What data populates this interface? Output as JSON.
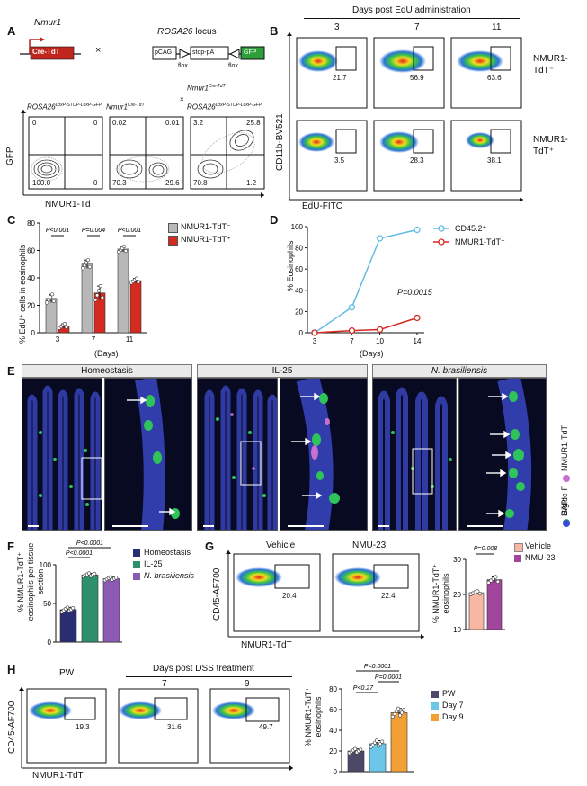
{
  "panelLabels": [
    "A",
    "B",
    "C",
    "D",
    "E",
    "F",
    "G",
    "H"
  ],
  "A": {
    "nmur1_label": "Nmur1",
    "cre_label": "Cre-TdT",
    "times": "×",
    "rosa_label": "ROSA26",
    "locus": " locus",
    "pcag": "pCAG",
    "stop": "stop-pA",
    "gfp": "GFP",
    "flox1": "flox",
    "flox2": "flox",
    "plots": [
      {
        "title": "ROSA26",
        "title_sup": "LoxP-STOP-LoxP-GFP",
        "q": [
          "0",
          "0",
          "100.0",
          "0"
        ]
      },
      {
        "title": "Nmur1",
        "title_sup": "Cre-TdT",
        "q": [
          "0.02",
          "0.01",
          "70.3",
          "29.6"
        ]
      },
      {
        "title": "Nmur1",
        "title_sup": "Cre-TdT",
        "title2": "×",
        "title3": "ROSA26",
        "title3_sup": "LoxP-STOP-LoxP-GFP",
        "q": [
          "3.2",
          "25.8",
          "70.8",
          "1.2"
        ]
      }
    ],
    "ylabel": "GFP",
    "xlabel": "NMUR1-TdT"
  },
  "B": {
    "header": "Days post EdU administration",
    "days": [
      "3",
      "7",
      "11"
    ],
    "row1_label": "NMUR1-",
    "row1_label2": "TdT⁻",
    "row2_label": "NMUR1-",
    "row2_label2": "TdT⁺",
    "row1_values": [
      "21.7",
      "56.9",
      "63.6"
    ],
    "row2_values": [
      "3.5",
      "28.3",
      "38.1"
    ],
    "ylabel": "CD11b-BV521",
    "xlabel": "EdU-FITC"
  },
  "C": {
    "ylabel": "% EdU⁺ cells in eosinophils",
    "xlabel": "(Days)",
    "legend": [
      "NMUR1-TdT⁻",
      "NMUR1-TdT⁺"
    ],
    "pvalues": [
      "P<0.001",
      "P=0.004",
      "P<0.001"
    ],
    "colors": {
      "neg": "#b8b8b8",
      "pos": "#d42a20"
    },
    "chart_data": {
      "type": "bar",
      "categories": [
        "3",
        "7",
        "11"
      ],
      "series": [
        {
          "name": "NMUR1-TdT⁻",
          "values": [
            25,
            50,
            61
          ],
          "err": [
            3,
            3,
            2
          ]
        },
        {
          "name": "NMUR1-TdT⁺",
          "values": [
            5,
            29,
            38
          ],
          "err": [
            1.5,
            5,
            1.5
          ]
        }
      ],
      "ylim": [
        0,
        80
      ],
      "yticks": [
        "0",
        "20",
        "40",
        "60",
        "80"
      ]
    }
  },
  "D": {
    "ylabel": "% Eosinophils",
    "xlabel": "(Days)",
    "legend": [
      "CD45.2⁺",
      "NMUR1-TdT⁺"
    ],
    "pvalue": "P=0.0015",
    "colors": {
      "cd45": "#5fbde6",
      "nmur": "#d42a20"
    },
    "chart_data": {
      "type": "line",
      "x": [
        3,
        7,
        10,
        14
      ],
      "series": [
        {
          "name": "CD45.2⁺",
          "values": [
            0,
            24,
            89,
            97
          ]
        },
        {
          "name": "NMUR1-TdT⁺",
          "values": [
            0,
            2,
            3,
            14
          ]
        }
      ],
      "xticks": [
        "3",
        "7",
        "10",
        "14"
      ],
      "yticks": [
        "0",
        "20",
        "40",
        "60",
        "80",
        "100"
      ],
      "ylim": [
        0,
        100
      ]
    }
  },
  "E": {
    "titles": [
      "Homeostasis",
      "IL-25",
      "N. brasiliensis"
    ],
    "legend": [
      "NMUR1-TdT",
      "Siglec-F",
      "DAPI"
    ],
    "legend_colors": [
      "#c86fd0",
      "#2fc45a",
      "#3c48d8"
    ]
  },
  "F": {
    "ylabel": "% NMUR1-TdT⁺ eosinophils per tissue section",
    "legend": [
      "Homeostasis",
      "IL-25",
      "N. brasiliensis"
    ],
    "colors": [
      "#2b2d72",
      "#2f8f6a",
      "#8b5bb3"
    ],
    "pvalues": [
      "P<0.0001",
      "P<0.0001"
    ],
    "chart_data": {
      "type": "bar",
      "categories": [
        "Homeostasis",
        "IL-25",
        "N. brasiliensis"
      ],
      "values": [
        42,
        87,
        82
      ],
      "err": [
        3,
        2,
        2
      ],
      "ylim": [
        0,
        100
      ],
      "yticks": [
        "0",
        "50",
        "100"
      ]
    }
  },
  "G": {
    "titles": [
      "Vehicle",
      "NMU-23"
    ],
    "values": [
      "20.4",
      "22.4"
    ],
    "ylabel": "CD45-AF700",
    "xlabel": "NMUR1-TdT",
    "bar_ylabel": "% NMUR1-TdT⁺ eosinophils",
    "legend": [
      "Vehicle",
      "NMU-23"
    ],
    "colors": [
      "#f7b7a3",
      "#a2459c"
    ],
    "pvalue": "P=0.008",
    "chart_data": {
      "type": "bar",
      "categories": [
        "Vehicle",
        "NMU-23"
      ],
      "values": [
        20.5,
        24.2
      ],
      "err": [
        0.4,
        0.8
      ],
      "ylim": [
        10,
        30
      ],
      "yticks": [
        "10",
        "20",
        "30"
      ]
    }
  },
  "H": {
    "header": "Days post DSS treatment",
    "titles": [
      "PW",
      "7",
      "9"
    ],
    "values": [
      "19.3",
      "31.6",
      "49.7"
    ],
    "ylabel": "CD45-AF700",
    "xlabel": "NMUR1-TdT",
    "bar_ylabel": "% NMUR1-TdT⁺ eosinophils",
    "legend": [
      "PW",
      "Day 7",
      "Day 9"
    ],
    "colors": [
      "#4a4a68",
      "#6cc6e8",
      "#f2a033"
    ],
    "pvalues": [
      "P<0.0001",
      "P=0.0001",
      "P<0.27"
    ],
    "chart_data": {
      "type": "bar",
      "categories": [
        "PW",
        "Day 7",
        "Day 9"
      ],
      "values": [
        20,
        27,
        57
      ],
      "err": [
        2,
        3,
        4
      ],
      "ylim": [
        0,
        80
      ],
      "yticks": [
        "0",
        "20",
        "40",
        "60",
        "80"
      ]
    }
  }
}
